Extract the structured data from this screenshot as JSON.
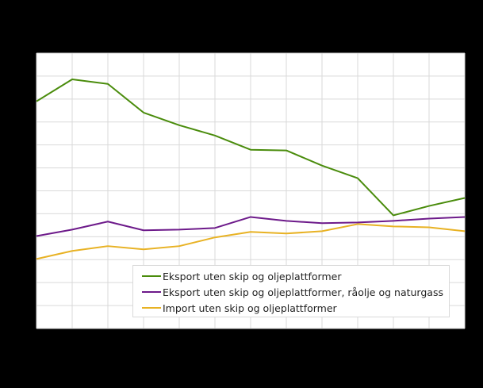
{
  "chart_data": {
    "type": "line",
    "title": "",
    "xlabel": "",
    "ylabel": "",
    "note": "Axis tick labels are not visible (rendered black on black); values below are in relative gridline units (0 = plot bottom, 12 = plot top).",
    "ylim": [
      0,
      12
    ],
    "grid": true,
    "legend_position": "inside-bottom",
    "x": [
      0,
      1,
      2,
      3,
      4,
      5,
      6,
      7,
      8,
      9,
      10,
      11,
      12
    ],
    "series": [
      {
        "name": "Eksport uten skip og oljeplattformer",
        "color": "#4a8c0c",
        "values": [
          9.9,
          10.86,
          10.66,
          9.41,
          8.86,
          8.41,
          7.79,
          7.76,
          7.1,
          6.55,
          4.93,
          5.34,
          5.69
        ]
      },
      {
        "name": "Eksport uten skip og oljeplattformer, råolje og naturgass",
        "color": "#6d1a8a",
        "values": [
          4.03,
          4.31,
          4.66,
          4.28,
          4.31,
          4.38,
          4.86,
          4.69,
          4.59,
          4.62,
          4.69,
          4.79,
          4.86
        ]
      },
      {
        "name": "Import uten skip og oljeplattformer",
        "color": "#e8b224",
        "values": [
          3.03,
          3.38,
          3.59,
          3.45,
          3.59,
          3.97,
          4.21,
          4.14,
          4.24,
          4.55,
          4.45,
          4.41,
          4.24
        ]
      }
    ]
  },
  "legend": {
    "items": [
      {
        "label": "Eksport uten skip og oljeplattformer",
        "color": "#4a8c0c"
      },
      {
        "label": "Eksport uten skip og oljeplattformer, råolje og naturgass",
        "color": "#6d1a8a"
      },
      {
        "label": "Import uten skip og oljeplattformer",
        "color": "#e8b224"
      }
    ]
  }
}
